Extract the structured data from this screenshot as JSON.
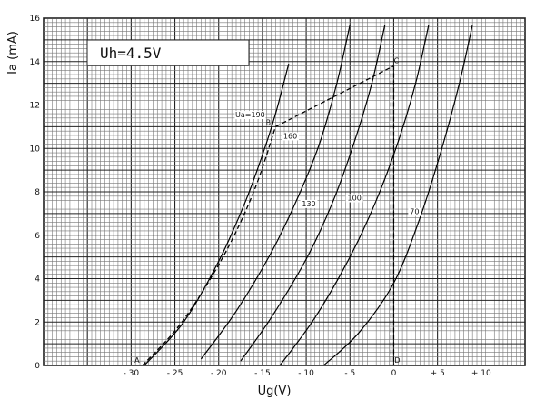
{
  "chart_data": {
    "type": "line",
    "title": "",
    "annotation": "Uh=4.5V",
    "xlabel": "Ug(V)",
    "ylabel": "Ia (mA)",
    "xlim": [
      -40,
      15
    ],
    "ylim": [
      0,
      16
    ],
    "x_ticks": [
      "- 30",
      "- 25",
      "- 20",
      "- 15",
      "- 10",
      "- 5",
      "0",
      "+ 5",
      "+ 10"
    ],
    "x_tick_values": [
      -30,
      -25,
      -20,
      -15,
      -10,
      -5,
      0,
      5,
      10
    ],
    "y_ticks": [
      "0",
      "2",
      "4",
      "6",
      "8",
      "10",
      "12",
      "14",
      "16"
    ],
    "y_tick_values": [
      0,
      2,
      4,
      6,
      8,
      10,
      12,
      14,
      16
    ],
    "grid": true,
    "series": [
      {
        "name": "Ua=190",
        "x": [
          -28.5,
          -24,
          -20,
          -17,
          -15,
          -13.5,
          -12
        ],
        "y": [
          0,
          2,
          4.8,
          7.5,
          9.7,
          11.6,
          13.9
        ]
      },
      {
        "name": "160",
        "x": [
          -22,
          -18,
          -14,
          -11,
          -8.5,
          -6.5,
          -5
        ],
        "y": [
          0.3,
          2.5,
          5.2,
          7.7,
          10.2,
          13,
          15.7
        ]
      },
      {
        "name": "130",
        "x": [
          -17.5,
          -14,
          -10,
          -7,
          -4.5,
          -2.5,
          -1
        ],
        "y": [
          0.2,
          2.2,
          4.9,
          7.5,
          10.3,
          13,
          15.7
        ]
      },
      {
        "name": "100",
        "x": [
          -13,
          -9,
          -5,
          -2,
          0.5,
          2.5,
          4
        ],
        "y": [
          0,
          2.2,
          5,
          7.6,
          10.3,
          13,
          15.7
        ]
      },
      {
        "name": "70",
        "x": [
          -8,
          -4,
          0,
          3,
          5.5,
          7.5,
          9
        ],
        "y": [
          0,
          1.5,
          3.8,
          6.8,
          10,
          13,
          15.7
        ]
      }
    ],
    "points": [
      {
        "label": "A",
        "x": -28.7,
        "y": 0
      },
      {
        "label": "B",
        "x": -13.5,
        "y": 11
      },
      {
        "label": "C",
        "x": 0,
        "y": 13.8
      },
      {
        "label": "D",
        "x": 0,
        "y": 0
      }
    ],
    "load_line": {
      "from": "A",
      "via": "B",
      "to": "C",
      "drop_to": "D"
    }
  }
}
